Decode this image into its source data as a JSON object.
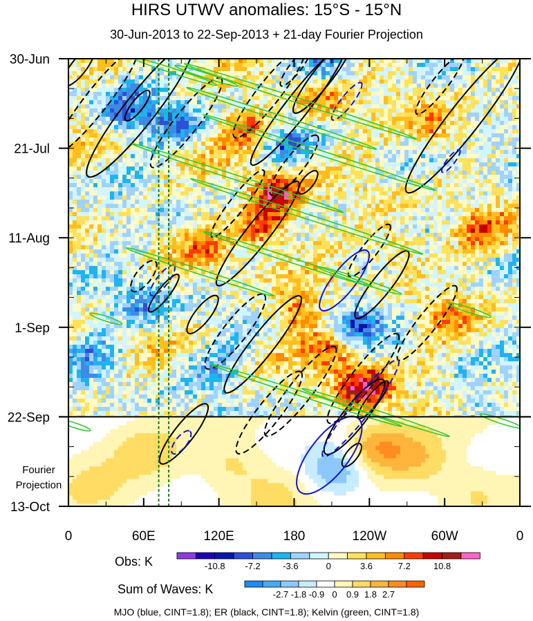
{
  "chart_data": {
    "type": "heatmap",
    "title": "HIRS UTWV anomalies: 15°S - 15°N",
    "subtitle": "30-Jun-2013 to 22-Sep-2013 + 21-day Fourier Projection",
    "xlabel": "",
    "ylabel": "",
    "x_ticks": [
      "0",
      "60E",
      "120E",
      "180",
      "120W",
      "60W",
      "0"
    ],
    "x_tick_values": [
      0,
      60,
      120,
      180,
      240,
      300,
      360
    ],
    "x_range": [
      0,
      360
    ],
    "y_ticks": [
      "30-Jun",
      "21-Jul",
      "11-Aug",
      "1-Sep",
      "22-Sep",
      "13-Oct"
    ],
    "y_tick_days": [
      0,
      21,
      42,
      63,
      84,
      105
    ],
    "y_range_days": [
      0,
      105
    ],
    "observation_end_day": 84,
    "projection_label": [
      "Fourier",
      "Projection"
    ],
    "reference_longitudes": [
      72,
      80
    ],
    "obs_colorbar": {
      "title": "Obs: K",
      "tick_labels": [
        "-10.8",
        "-7.2",
        "-3.6",
        "0",
        "3.6",
        "7.2",
        "10.8"
      ],
      "levels": [
        -12.6,
        -10.8,
        -9.0,
        -7.2,
        -5.4,
        -3.6,
        -1.8,
        0,
        1.8,
        3.6,
        5.4,
        7.2,
        9.0,
        10.8,
        12.6
      ],
      "colors": [
        "#8c3cdc",
        "#1e00b4",
        "#0a14aa",
        "#2d50d7",
        "#3c8ce6",
        "#1eb4f0",
        "#a0d2ff",
        "#d2f5ff",
        "#fffac8",
        "#ffe15a",
        "#ffbe1e",
        "#ff8c00",
        "#ff3c00",
        "#c80000",
        "#a01e14",
        "#ff64c8"
      ]
    },
    "waves_colorbar": {
      "title": "Sum of Waves: K",
      "tick_labels": [
        "-2.7",
        "-1.8",
        "-0.9",
        "0",
        "0.9",
        "1.8",
        "2.7"
      ],
      "levels": [
        -3.6,
        -2.7,
        -1.8,
        -0.9,
        0,
        0.9,
        1.8,
        2.7,
        3.6
      ],
      "colors": [
        "#1e8cf0",
        "#46aaf5",
        "#8cc8fa",
        "#c8ecff",
        "#ffffff",
        "#fff5b4",
        "#ffdc64",
        "#ffb43c",
        "#ff8c1e",
        "#ff6400"
      ]
    },
    "contour_legend": "MJO (blue, CINT=1.8); ER (black, CINT=1.8); Kelvin (green, CINT=1.8)",
    "wave_colors": {
      "MJO": "#1414c8",
      "ER": "#000000",
      "Kelvin": "#32c832"
    },
    "er_contours": [
      {
        "lon": 8,
        "day": 2,
        "len": 5,
        "wid": 2,
        "sign": 1
      },
      {
        "lon": 22,
        "day": 10,
        "len": 14,
        "wid": 3,
        "sign": -1
      },
      {
        "lon": 57,
        "day": 12,
        "len": 18,
        "wid": 4,
        "sign": 1
      },
      {
        "lon": 55,
        "day": 11,
        "len": 4,
        "wid": 1.5,
        "sign": 1
      },
      {
        "lon": 94,
        "day": 15,
        "len": 12,
        "wid": 3,
        "sign": -1
      },
      {
        "lon": 160,
        "day": 8,
        "len": 12,
        "wid": 3,
        "sign": -1
      },
      {
        "lon": 183,
        "day": 11,
        "len": 16,
        "wid": 3,
        "sign": 1
      },
      {
        "lon": 203,
        "day": 4,
        "len": 10,
        "wid": 2.5,
        "sign": 1
      },
      {
        "lon": 181,
        "day": 2,
        "len": 5,
        "wid": 1.5,
        "sign": -1
      },
      {
        "lon": 180,
        "day": 25,
        "len": 8,
        "wid": 2.5,
        "sign": -1
      },
      {
        "lon": 191,
        "day": 29,
        "len": 3,
        "wid": 1.5,
        "sign": 1
      },
      {
        "lon": 151,
        "day": 41,
        "len": 14,
        "wid": 3,
        "sign": 1
      },
      {
        "lon": 135,
        "day": 34,
        "len": 9,
        "wid": 2,
        "sign": -1
      },
      {
        "lon": 240,
        "day": 45,
        "len": 7,
        "wid": 2,
        "sign": -1
      },
      {
        "lon": 250,
        "day": 53,
        "len": 9,
        "wid": 2.5,
        "sign": 1
      },
      {
        "lon": 60,
        "day": 51,
        "len": 4,
        "wid": 2,
        "sign": -1
      },
      {
        "lon": 76,
        "day": 55,
        "len": 5,
        "wid": 1.5,
        "sign": 1
      },
      {
        "lon": 107,
        "day": 60,
        "len": 5,
        "wid": 2,
        "sign": 1
      },
      {
        "lon": 133,
        "day": 64,
        "len": 10,
        "wid": 3,
        "sign": -1
      },
      {
        "lon": 155,
        "day": 67,
        "len": 13,
        "wid": 3,
        "sign": 1
      },
      {
        "lon": 160,
        "day": 83,
        "len": 11,
        "wid": 3,
        "sign": -1
      },
      {
        "lon": 185,
        "day": 78,
        "len": 12,
        "wid": 3,
        "sign": -1
      },
      {
        "lon": 235,
        "day": 75,
        "len": 12,
        "wid": 3,
        "sign": -1
      },
      {
        "lon": 228,
        "day": 84,
        "len": 10,
        "wid": 3,
        "sign": 1
      },
      {
        "lon": 243,
        "day": 80,
        "len": 5,
        "wid": 1.5,
        "sign": 1
      },
      {
        "lon": 286,
        "day": 62,
        "len": 10,
        "wid": 2.5,
        "sign": -1
      },
      {
        "lon": 316,
        "day": 14,
        "len": 20,
        "wid": 4,
        "sign": 1
      },
      {
        "lon": 296,
        "day": 6,
        "len": 8,
        "wid": 2,
        "sign": -1
      },
      {
        "lon": 92,
        "day": 88,
        "len": 8,
        "wid": 2.5,
        "sign": 1
      },
      {
        "lon": 226,
        "day": 93,
        "len": 3,
        "wid": 1.5,
        "sign": 1
      }
    ],
    "mjo_contours": [
      {
        "lon": 220,
        "day": 52,
        "len": 8,
        "wid": 3,
        "sign": 1
      },
      {
        "lon": 222,
        "day": 10,
        "len": 5,
        "wid": 1.5,
        "sign": -1
      },
      {
        "lon": 233,
        "day": 82,
        "len": 13,
        "wid": 2.5,
        "sign": -1
      },
      {
        "lon": 208,
        "day": 93,
        "len": 10,
        "wid": 5,
        "sign": 1
      },
      {
        "lon": 75,
        "day": 52,
        "len": 4,
        "wid": 1.5,
        "sign": -1
      },
      {
        "lon": 90,
        "day": 90,
        "len": 3,
        "wid": 1.5,
        "sign": -1
      },
      {
        "lon": 305,
        "day": 24,
        "len": 3,
        "wid": 1,
        "sign": -1
      }
    ],
    "kelvin_contours": [
      {
        "lon": 85,
        "day": 3,
        "len": 8,
        "wid": 1,
        "sign": 1
      },
      {
        "lon": 110,
        "day": 4,
        "len": 6,
        "wid": 1,
        "sign": 1
      },
      {
        "lon": 185,
        "day": 10,
        "len": 22,
        "wid": 1,
        "sign": 1
      },
      {
        "lon": 170,
        "day": 14,
        "len": 18,
        "wid": 1,
        "sign": 1
      },
      {
        "lon": 200,
        "day": 22,
        "len": 22,
        "wid": 1,
        "sign": 1
      },
      {
        "lon": 135,
        "day": 28,
        "len": 20,
        "wid": 1,
        "sign": 1
      },
      {
        "lon": 190,
        "day": 37,
        "len": 22,
        "wid": 1,
        "sign": 1
      },
      {
        "lon": 175,
        "day": 47,
        "len": 16,
        "wid": 1,
        "sign": 1
      },
      {
        "lon": 105,
        "day": 50,
        "len": 14,
        "wid": 1,
        "sign": 1
      },
      {
        "lon": 232,
        "day": 52,
        "len": 8,
        "wid": 1,
        "sign": 1
      },
      {
        "lon": 190,
        "day": 79,
        "len": 18,
        "wid": 1,
        "sign": 1
      },
      {
        "lon": 245,
        "day": 83,
        "len": 14,
        "wid": 1,
        "sign": 1
      },
      {
        "lon": 345,
        "day": 85,
        "len": 4,
        "wid": 1,
        "sign": 1
      },
      {
        "lon": 5,
        "day": 86,
        "len": 3,
        "wid": 1,
        "sign": 1
      },
      {
        "lon": 30,
        "day": 61,
        "len": 3,
        "wid": 1,
        "sign": 1
      },
      {
        "lon": 320,
        "day": 59,
        "len": 4,
        "wid": 1,
        "sign": 1
      }
    ],
    "hot_spots": [
      {
        "lon": 165,
        "day": 31,
        "amp": 10
      },
      {
        "lon": 155,
        "day": 39,
        "amp": 9
      },
      {
        "lon": 235,
        "day": 77,
        "amp": 11
      },
      {
        "lon": 210,
        "day": 68,
        "amp": 8
      },
      {
        "lon": 140,
        "day": 16,
        "amp": 7
      },
      {
        "lon": 200,
        "day": 10,
        "amp": 6
      },
      {
        "lon": 290,
        "day": 16,
        "amp": 6
      },
      {
        "lon": 180,
        "day": 59,
        "amp": 6
      },
      {
        "lon": 260,
        "day": 44,
        "amp": 5
      },
      {
        "lon": 330,
        "day": 40,
        "amp": 5
      },
      {
        "lon": 110,
        "day": 44,
        "amp": 4
      },
      {
        "lon": 300,
        "day": 60,
        "amp": 4
      }
    ],
    "cold_spots": [
      {
        "lon": 45,
        "day": 12,
        "amp": -7
      },
      {
        "lon": 85,
        "day": 15,
        "amp": -5
      },
      {
        "lon": 225,
        "day": 62,
        "amp": -8
      },
      {
        "lon": 170,
        "day": 20,
        "amp": -5
      },
      {
        "lon": 205,
        "day": 2,
        "amp": -4
      },
      {
        "lon": 345,
        "day": 18,
        "amp": -4
      },
      {
        "lon": 60,
        "day": 57,
        "amp": -5
      },
      {
        "lon": 20,
        "day": 70,
        "amp": -4
      },
      {
        "lon": 120,
        "day": 72,
        "amp": -4
      },
      {
        "lon": 320,
        "day": 80,
        "amp": -3
      }
    ],
    "projection_field": [
      {
        "lon": 212,
        "day": 96,
        "amp": -3.2
      },
      {
        "lon": 245,
        "day": 91,
        "amp": 2.4
      },
      {
        "lon": 280,
        "day": 94,
        "amp": 1.6
      },
      {
        "lon": 130,
        "day": 95,
        "amp": 1.4
      },
      {
        "lon": 60,
        "day": 92,
        "amp": 1.2
      },
      {
        "lon": 20,
        "day": 100,
        "amp": 0.9
      },
      {
        "lon": 160,
        "day": 102,
        "amp": 1.0
      },
      {
        "lon": 320,
        "day": 101,
        "amp": 1.1
      }
    ]
  }
}
